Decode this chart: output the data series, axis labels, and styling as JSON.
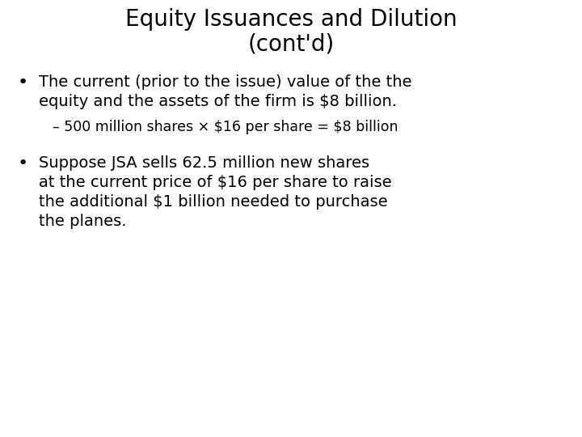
{
  "title_line1": "Equity Issuances and Dilution",
  "title_line2": "(cont'd)",
  "background_color": "#ffffff",
  "text_color": "#000000",
  "title_fontsize": 20,
  "body_fontsize": 14,
  "sub_fontsize": 12.5,
  "font_family": "DejaVu Sans",
  "bullet1_line1": "The current (prior to the issue) value of the the",
  "bullet1_line2": "equity and the assets of the firm is $8 billion.",
  "sub_bullet": "– 500 million shares × $16 per share = $8 billion",
  "bullet2_line1": "Suppose JSA sells 62.5 million new shares",
  "bullet2_line2": "at the current price of $16 per share to raise",
  "bullet2_line3": "the additional $1 billion needed to purchase",
  "bullet2_line4": "the planes."
}
